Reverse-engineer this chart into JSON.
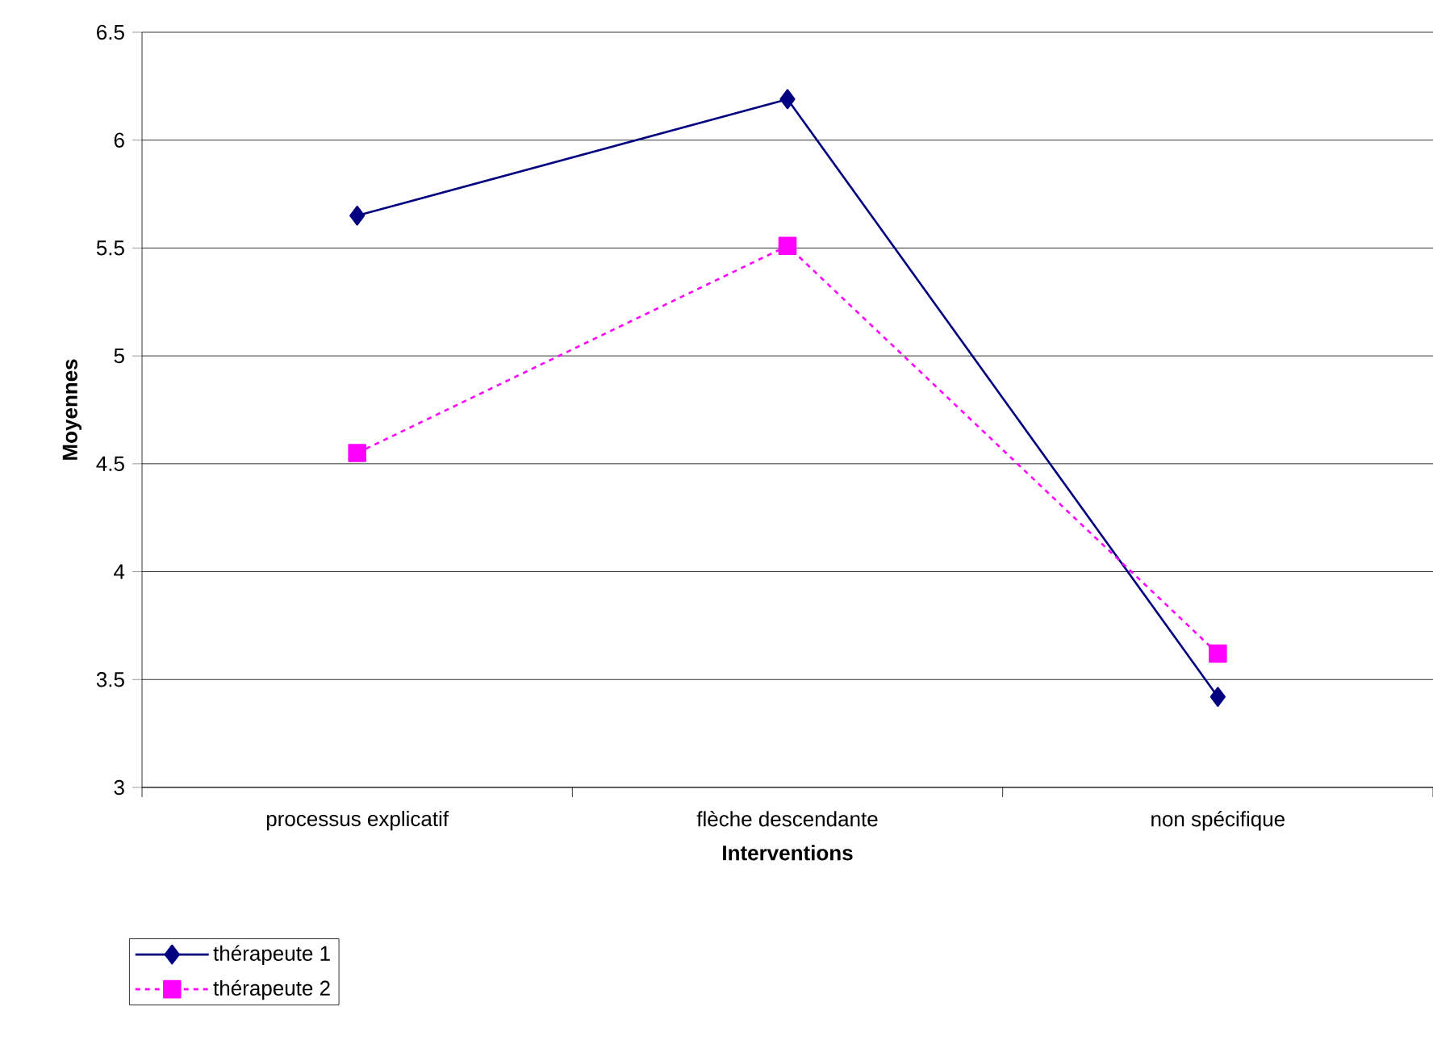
{
  "chart_data": {
    "type": "line",
    "xlabel": "Interventions",
    "ylabel": "Moyennes",
    "categories": [
      "processus explicatif",
      "flèche descendante",
      "non spécifique"
    ],
    "series": [
      {
        "name": "thérapeute 1",
        "color": "#000080",
        "values": [
          5.65,
          6.19,
          3.42
        ],
        "marker": "diamond",
        "line_style": "solid"
      },
      {
        "name": "thérapeute 2",
        "color": "#ff00ff",
        "values": [
          4.55,
          5.51,
          3.62
        ],
        "marker": "square",
        "line_style": "dashed"
      }
    ],
    "ylim": [
      3,
      6.5
    ],
    "yticks": [
      3,
      3.5,
      4,
      4.5,
      5,
      5.5,
      6,
      6.5
    ],
    "grid": "y",
    "legend": "bottom left"
  }
}
